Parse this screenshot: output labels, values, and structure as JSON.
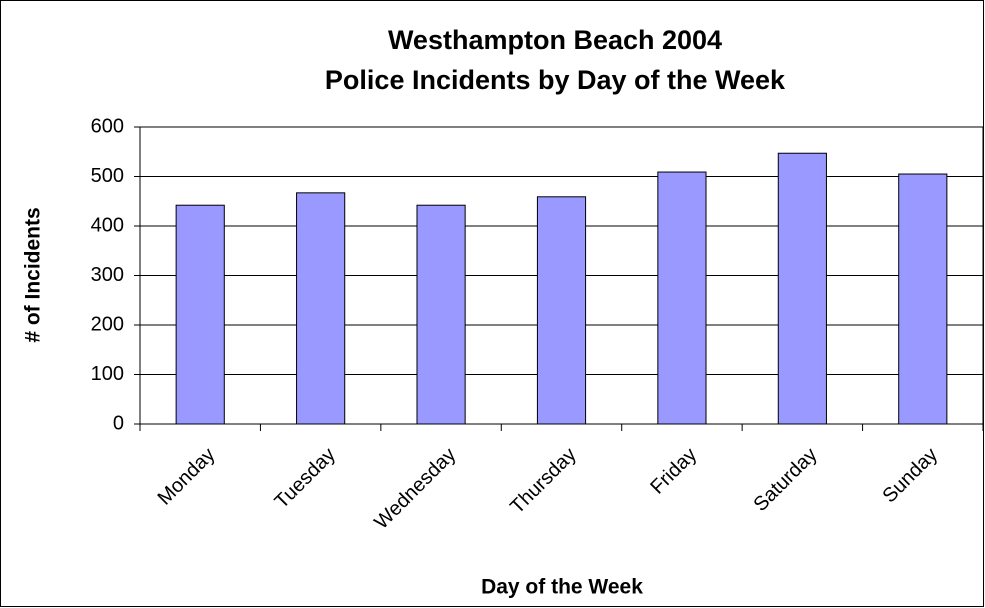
{
  "chart_data": {
    "type": "bar",
    "title": [
      "Westhampton Beach 2004",
      "Police Incidents by Day of the Week"
    ],
    "x_label": "Day of the Week",
    "y_label": "# of Incidents",
    "categories": [
      "Monday",
      "Tuesday",
      "Wednesday",
      "Thursday",
      "Friday",
      "Saturday",
      "Sunday"
    ],
    "values": [
      442,
      467,
      442,
      459,
      509,
      547,
      505
    ],
    "color": "#9999ff",
    "ylim": [
      0,
      600
    ],
    "yticks": [
      0,
      100,
      200,
      300,
      400,
      500,
      600
    ],
    "grid": true
  }
}
